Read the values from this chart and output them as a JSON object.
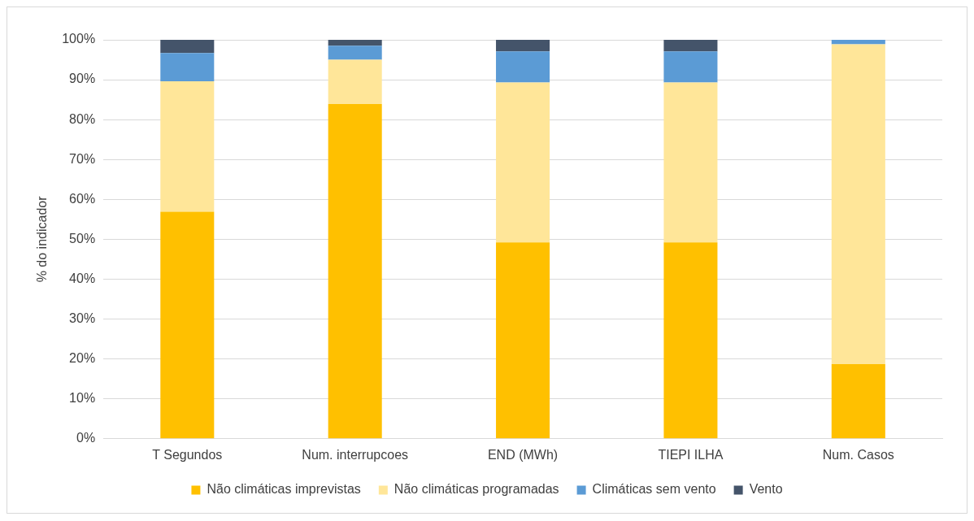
{
  "chart_data": {
    "type": "bar",
    "stacked": true,
    "ylabel": "% do indicador",
    "categories": [
      "T Segundos",
      "Num. interrupcoes",
      "END (MWh)",
      "TIEPI ILHA",
      "Num. Casos"
    ],
    "series": [
      {
        "name": "Não climáticas imprevistas",
        "color": "#ffc000",
        "values": [
          56.9,
          83.9,
          49.2,
          49.2,
          18.7
        ]
      },
      {
        "name": "Não climáticas programadas",
        "color": "#ffe699",
        "values": [
          32.7,
          11.1,
          40.1,
          40.1,
          80.2
        ]
      },
      {
        "name": "Climáticas sem vento",
        "color": "#5b9bd5",
        "values": [
          7.1,
          3.5,
          7.8,
          7.8,
          1.1
        ]
      },
      {
        "name": "Vento",
        "color": "#44546a",
        "values": [
          3.3,
          1.5,
          2.9,
          2.9,
          0
        ]
      }
    ],
    "ylim": [
      0,
      100
    ],
    "yticks": [
      {
        "value": 0,
        "label": "0%"
      },
      {
        "value": 10,
        "label": "10%"
      },
      {
        "value": 20,
        "label": "20%"
      },
      {
        "value": 30,
        "label": "30%"
      },
      {
        "value": 40,
        "label": "40%"
      },
      {
        "value": 50,
        "label": "50%"
      },
      {
        "value": 60,
        "label": "60%"
      },
      {
        "value": 70,
        "label": "70%"
      },
      {
        "value": 80,
        "label": "80%"
      },
      {
        "value": 90,
        "label": "90%"
      },
      {
        "value": 100,
        "label": "100%"
      }
    ],
    "grid": "y",
    "legend": "bottom"
  }
}
